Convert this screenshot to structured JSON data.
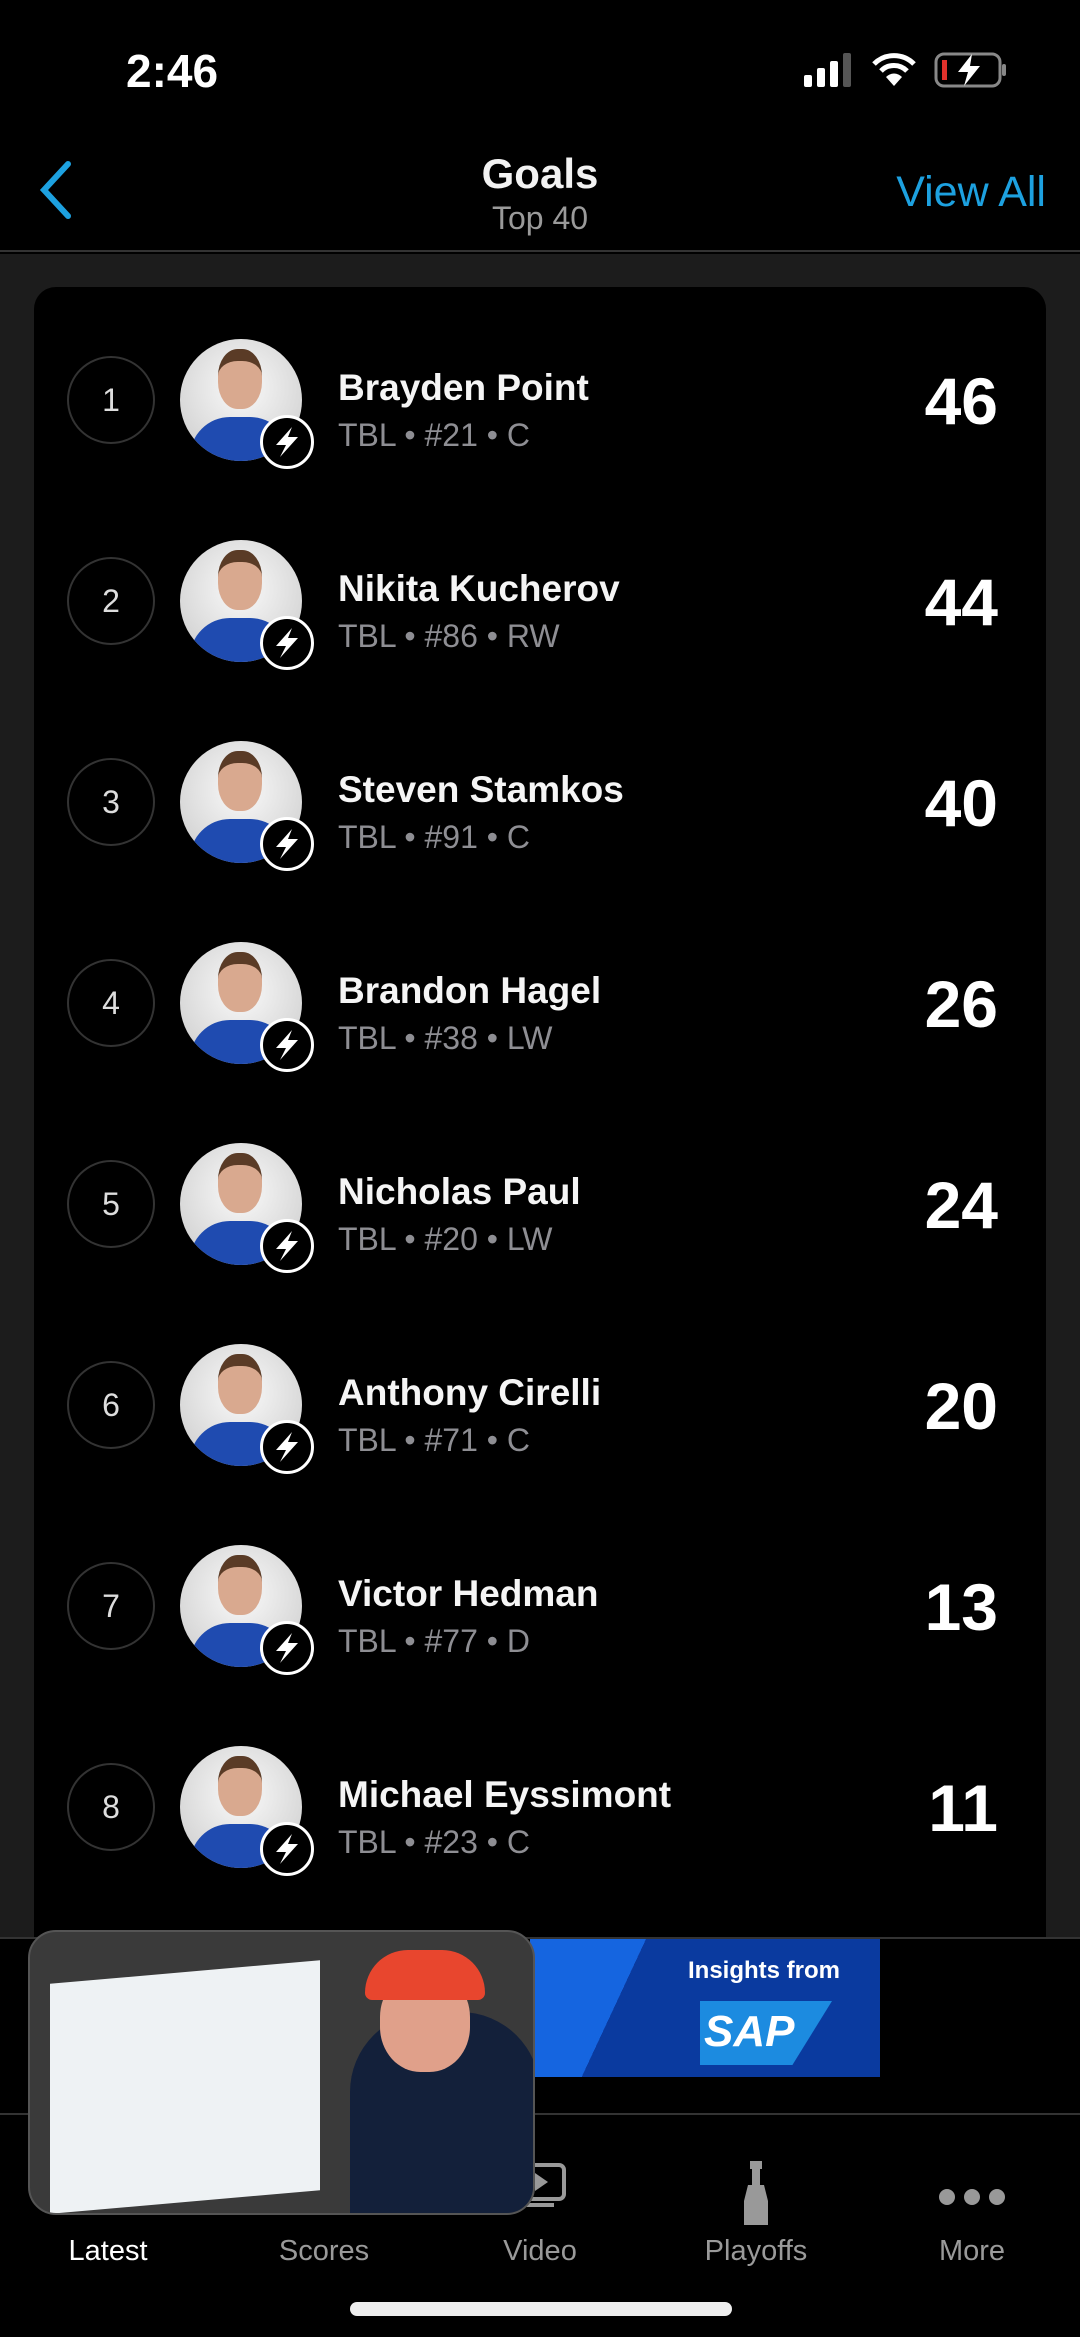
{
  "status": {
    "time": "2:46"
  },
  "header": {
    "title": "Goals",
    "subtitle": "Top 40",
    "view_all": "View All"
  },
  "players": [
    {
      "rank": "1",
      "name": "Brayden Point",
      "meta": "TBL • #21 • C",
      "value": "46"
    },
    {
      "rank": "2",
      "name": "Nikita Kucherov",
      "meta": "TBL • #86 • RW",
      "value": "44"
    },
    {
      "rank": "3",
      "name": "Steven Stamkos",
      "meta": "TBL • #91 • C",
      "value": "40"
    },
    {
      "rank": "4",
      "name": "Brandon Hagel",
      "meta": "TBL • #38 • LW",
      "value": "26"
    },
    {
      "rank": "5",
      "name": "Nicholas Paul",
      "meta": "TBL • #20 • LW",
      "value": "24"
    },
    {
      "rank": "6",
      "name": "Anthony Cirelli",
      "meta": "TBL • #71 • C",
      "value": "20"
    },
    {
      "rank": "7",
      "name": "Victor Hedman",
      "meta": "TBL • #77 • D",
      "value": "13"
    },
    {
      "rank": "8",
      "name": "Michael Eyssimont",
      "meta": "TBL • #23 • C",
      "value": "11"
    }
  ],
  "ad": {
    "text": "Insights from",
    "logo": "SAP"
  },
  "tabs": [
    {
      "label": "Latest",
      "icon": "home-icon"
    },
    {
      "label": "Scores",
      "icon": "scores-icon"
    },
    {
      "label": "Video",
      "icon": "video-icon"
    },
    {
      "label": "Playoffs",
      "icon": "trophy-icon"
    },
    {
      "label": "More",
      "icon": "more-icon"
    }
  ],
  "colors": {
    "accent": "#1da1e0",
    "background": "#000000",
    "secondary_text": "#8e8e93"
  }
}
